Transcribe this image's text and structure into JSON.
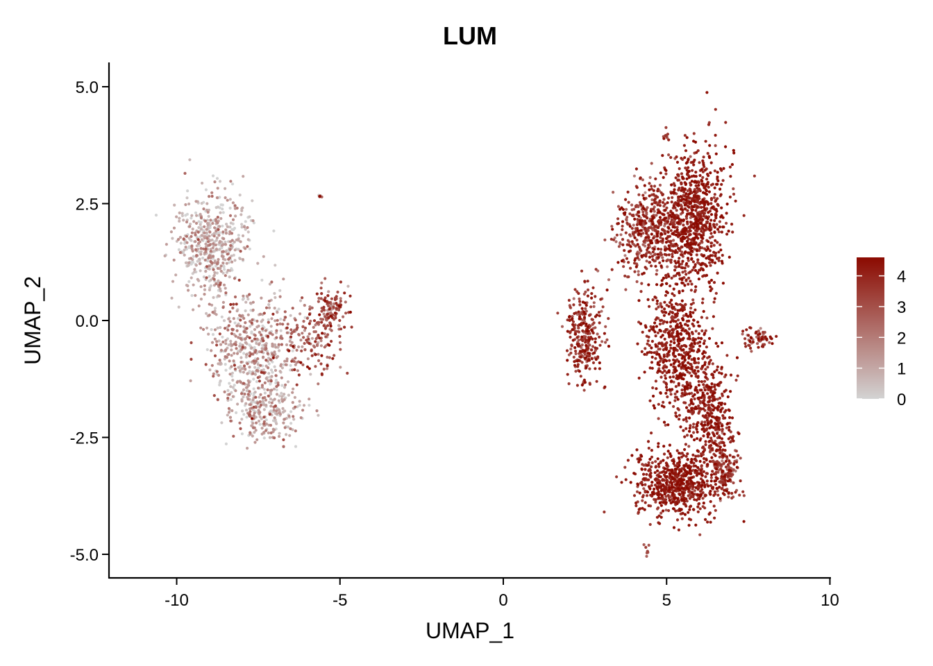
{
  "chart_data": {
    "type": "scatter",
    "title": "LUM",
    "xlabel": "UMAP_1",
    "ylabel": "UMAP_2",
    "xlim": [
      -12.1,
      10
    ],
    "ylim": [
      -5.5,
      5.5
    ],
    "x_ticks": [
      -10,
      -5,
      0,
      5,
      10
    ],
    "x_tick_labels": [
      "-10",
      "-5",
      "0",
      "5",
      "10"
    ],
    "y_ticks": [
      5.0,
      2.5,
      0.0,
      -2.5,
      -5.0
    ],
    "y_tick_labels": [
      "5.0",
      "2.5",
      "0.0",
      "-2.5",
      "-5.0"
    ],
    "grid": false,
    "color_scale": {
      "low_color": "#d3d3d3",
      "high_color": "#8b0a00",
      "min": 0,
      "max": 4.6,
      "ticks": [
        4,
        3,
        2,
        1,
        0
      ],
      "tick_labels": [
        "4",
        "3",
        "2",
        "1",
        "0"
      ],
      "placement": "right"
    },
    "clusters": [
      {
        "name": "left-upper-lobe",
        "center": [
          -8.9,
          1.6
        ],
        "spread": [
          0.55,
          0.55
        ],
        "n": 520,
        "expr_mean": 0.7,
        "expr_sd": 0.9
      },
      {
        "name": "left-middle",
        "center": [
          -7.7,
          -0.6
        ],
        "spread": [
          0.7,
          0.6
        ],
        "n": 520,
        "expr_mean": 1.1,
        "expr_sd": 1.1
      },
      {
        "name": "left-lower",
        "center": [
          -7.2,
          -1.9
        ],
        "spread": [
          0.55,
          0.35
        ],
        "n": 260,
        "expr_mean": 0.9,
        "expr_sd": 1.0
      },
      {
        "name": "left-arm",
        "center": [
          -6.0,
          -0.4
        ],
        "spread": [
          0.45,
          0.35
        ],
        "n": 140,
        "expr_mean": 2.6,
        "expr_sd": 1.0
      },
      {
        "name": "left-tip",
        "center": [
          -5.3,
          0.2
        ],
        "spread": [
          0.22,
          0.25
        ],
        "n": 110,
        "expr_mean": 3.0,
        "expr_sd": 0.9
      },
      {
        "name": "right-top-a",
        "center": [
          4.4,
          1.9
        ],
        "spread": [
          0.5,
          0.5
        ],
        "n": 420,
        "expr_mean": 3.6,
        "expr_sd": 0.8
      },
      {
        "name": "right-top-b",
        "center": [
          5.8,
          2.2
        ],
        "spread": [
          0.5,
          0.7
        ],
        "n": 850,
        "expr_mean": 4.1,
        "expr_sd": 0.5
      },
      {
        "name": "right-left-arm",
        "center": [
          2.5,
          -0.3
        ],
        "spread": [
          0.3,
          0.5
        ],
        "n": 280,
        "expr_mean": 3.8,
        "expr_sd": 0.7
      },
      {
        "name": "right-middle",
        "center": [
          5.3,
          -0.6
        ],
        "spread": [
          0.45,
          0.7
        ],
        "n": 560,
        "expr_mean": 4.1,
        "expr_sd": 0.5
      },
      {
        "name": "right-lower-col",
        "center": [
          6.3,
          -2.0
        ],
        "spread": [
          0.35,
          0.6
        ],
        "n": 380,
        "expr_mean": 4.1,
        "expr_sd": 0.5
      },
      {
        "name": "right-bottom",
        "center": [
          5.3,
          -3.5
        ],
        "spread": [
          0.65,
          0.35
        ],
        "n": 640,
        "expr_mean": 4.1,
        "expr_sd": 0.5
      },
      {
        "name": "right-bottom-right",
        "center": [
          6.8,
          -3.2
        ],
        "spread": [
          0.2,
          0.4
        ],
        "n": 150,
        "expr_mean": 3.6,
        "expr_sd": 0.8
      },
      {
        "name": "far-right-small",
        "center": [
          7.8,
          -0.4
        ],
        "spread": [
          0.22,
          0.12
        ],
        "n": 60,
        "expr_mean": 3.4,
        "expr_sd": 0.8
      },
      {
        "name": "top-outlier",
        "center": [
          5.0,
          3.95
        ],
        "spread": [
          0.05,
          0.08
        ],
        "n": 10,
        "expr_mean": 3.2,
        "expr_sd": 0.6
      },
      {
        "name": "bottom-outlier",
        "center": [
          4.4,
          -4.9
        ],
        "spread": [
          0.05,
          0.08
        ],
        "n": 8,
        "expr_mean": 3.0,
        "expr_sd": 0.6
      },
      {
        "name": "left-small-outlier",
        "center": [
          -5.6,
          2.65
        ],
        "spread": [
          0.05,
          0.03
        ],
        "n": 6,
        "expr_mean": 1.8,
        "expr_sd": 1.5
      }
    ]
  }
}
